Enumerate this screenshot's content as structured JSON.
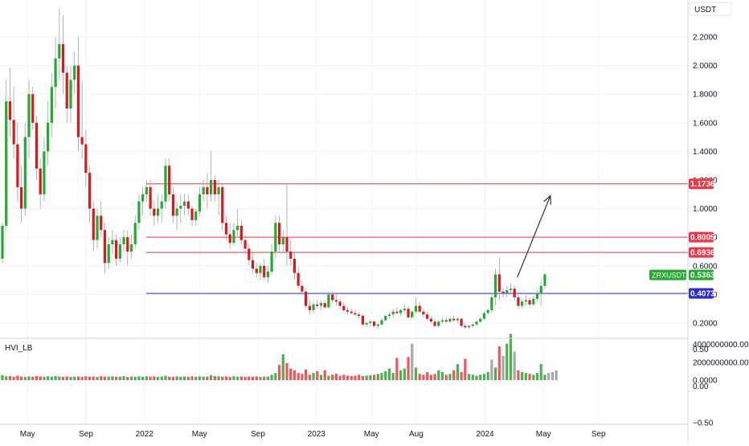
{
  "symbol": "ZRXUSDT.P",
  "quote_currency": "USDT",
  "indicator": {
    "name": "HVI_LB"
  },
  "chart_data": {
    "type": "candlestick",
    "price_axis": {
      "ticks": [
        {
          "value": 2.2,
          "label": "2.2000"
        },
        {
          "value": 2.0,
          "label": "2.0000"
        },
        {
          "value": 1.8,
          "label": "1.8000"
        },
        {
          "value": 1.6,
          "label": "1.6000"
        },
        {
          "value": 1.4,
          "label": "1.4000"
        },
        {
          "value": 1.2,
          "label": "1.2000"
        },
        {
          "value": 1.0,
          "label": "1.0000"
        },
        {
          "value": 0.8,
          "label": "0.8000"
        },
        {
          "value": 0.6,
          "label": "0.6000"
        },
        {
          "value": 0.4,
          "label": "0.4000"
        },
        {
          "value": 0.2,
          "label": "0.2000"
        }
      ],
      "ylim": [
        0.1,
        2.38
      ]
    },
    "time_axis": [
      {
        "label": "May",
        "t": 0.04
      },
      {
        "label": "Sep",
        "t": 0.125
      },
      {
        "label": "2022",
        "t": 0.21
      },
      {
        "label": "May",
        "t": 0.29
      },
      {
        "label": "Sep",
        "t": 0.375
      },
      {
        "label": "2023",
        "t": 0.46
      },
      {
        "label": "May",
        "t": 0.54
      },
      {
        "label": "Aug",
        "t": 0.605
      },
      {
        "label": "2024",
        "t": 0.705
      },
      {
        "label": "May",
        "t": 0.79
      },
      {
        "label": "Sep",
        "t": 0.87
      }
    ],
    "levels": [
      {
        "value": 1.1736,
        "label": "1.1736",
        "color": "#f23645"
      },
      {
        "value": 0.8005,
        "label": "0.8005",
        "color": "#f23645"
      },
      {
        "value": 0.6936,
        "label": "0.6936",
        "color": "#f23645"
      },
      {
        "value": 0.4073,
        "label": "0.4073",
        "color": "#2b2bd4"
      }
    ],
    "last_price": {
      "value": 0.5363,
      "label": "0.5363",
      "color": "#22ab2e"
    },
    "projection": {
      "from": {
        "t": 0.752,
        "p": 0.52
      },
      "to": {
        "t": 0.8,
        "p": 1.09
      }
    },
    "candles": [
      [
        0.65,
        0.9,
        0.62,
        0.88
      ],
      [
        0.88,
        1.9,
        0.85,
        1.75
      ],
      [
        1.75,
        1.98,
        1.5,
        1.62
      ],
      [
        1.62,
        1.85,
        1.35,
        1.45
      ],
      [
        1.45,
        1.6,
        1.05,
        1.15
      ],
      [
        1.15,
        1.3,
        0.9,
        1.0
      ],
      [
        1.0,
        1.6,
        0.95,
        1.5
      ],
      [
        1.5,
        1.9,
        1.35,
        1.8
      ],
      [
        1.8,
        1.85,
        1.55,
        1.6
      ],
      [
        1.6,
        1.65,
        1.2,
        1.28
      ],
      [
        1.28,
        1.35,
        1.0,
        1.1
      ],
      [
        1.1,
        1.5,
        1.05,
        1.4
      ],
      [
        1.4,
        1.75,
        1.3,
        1.6
      ],
      [
        1.6,
        1.95,
        1.5,
        1.85
      ],
      [
        1.85,
        2.2,
        1.7,
        2.05
      ],
      [
        2.05,
        2.4,
        1.9,
        2.15
      ],
      [
        2.15,
        2.35,
        1.8,
        1.95
      ],
      [
        1.95,
        2.0,
        1.6,
        1.7
      ],
      [
        1.7,
        2.0,
        1.6,
        1.9
      ],
      [
        1.9,
        2.1,
        1.8,
        2.0
      ],
      [
        2.0,
        2.2,
        1.4,
        1.5
      ],
      [
        1.5,
        1.9,
        1.35,
        1.45
      ],
      [
        1.45,
        1.55,
        1.15,
        1.25
      ],
      [
        1.25,
        1.3,
        0.9,
        1.0
      ],
      [
        1.0,
        1.05,
        0.7,
        0.78
      ],
      [
        0.78,
        1.0,
        0.72,
        0.95
      ],
      [
        0.95,
        1.05,
        0.8,
        0.85
      ],
      [
        0.85,
        0.9,
        0.55,
        0.62
      ],
      [
        0.62,
        0.8,
        0.58,
        0.75
      ],
      [
        0.75,
        0.85,
        0.68,
        0.78
      ],
      [
        0.78,
        0.82,
        0.6,
        0.65
      ],
      [
        0.65,
        0.8,
        0.62,
        0.75
      ],
      [
        0.75,
        0.85,
        0.7,
        0.8
      ],
      [
        0.8,
        0.85,
        0.6,
        0.7
      ],
      [
        0.7,
        0.82,
        0.65,
        0.75
      ],
      [
        0.75,
        0.95,
        0.72,
        0.9
      ],
      [
        0.9,
        1.1,
        0.85,
        1.05
      ],
      [
        1.05,
        1.15,
        0.95,
        1.1
      ],
      [
        1.1,
        1.2,
        1.05,
        1.15
      ],
      [
        1.15,
        1.2,
        0.95,
        1.0
      ],
      [
        1.0,
        1.05,
        0.88,
        0.95
      ],
      [
        0.95,
        1.1,
        0.9,
        1.0
      ],
      [
        1.0,
        1.1,
        0.9,
        1.05
      ],
      [
        1.05,
        1.35,
        1.0,
        1.3
      ],
      [
        1.3,
        1.35,
        1.05,
        1.1
      ],
      [
        1.1,
        1.15,
        0.9,
        0.95
      ],
      [
        0.95,
        1.05,
        0.85,
        1.0
      ],
      [
        1.0,
        1.1,
        0.9,
        1.02
      ],
      [
        1.02,
        1.1,
        0.95,
        1.05
      ],
      [
        1.05,
        1.1,
        0.95,
        1.0
      ],
      [
        1.0,
        1.02,
        0.88,
        0.92
      ],
      [
        0.92,
        1.0,
        0.88,
        0.98
      ],
      [
        0.98,
        1.15,
        0.95,
        1.1
      ],
      [
        1.1,
        1.2,
        1.05,
        1.15
      ],
      [
        1.15,
        1.25,
        1.0,
        1.1
      ],
      [
        1.1,
        1.4,
        1.05,
        1.2
      ],
      [
        1.2,
        1.23,
        1.05,
        1.1
      ],
      [
        1.1,
        1.2,
        0.95,
        1.15
      ],
      [
        1.15,
        1.18,
        0.85,
        0.9
      ],
      [
        0.9,
        0.95,
        0.78,
        0.82
      ],
      [
        0.82,
        0.9,
        0.72,
        0.76
      ],
      [
        0.76,
        0.9,
        0.74,
        0.85
      ],
      [
        0.85,
        1.0,
        0.8,
        0.88
      ],
      [
        0.88,
        0.92,
        0.75,
        0.78
      ],
      [
        0.78,
        0.82,
        0.68,
        0.72
      ],
      [
        0.72,
        0.75,
        0.6,
        0.64
      ],
      [
        0.64,
        0.7,
        0.55,
        0.58
      ],
      [
        0.58,
        0.62,
        0.52,
        0.55
      ],
      [
        0.55,
        0.62,
        0.5,
        0.6
      ],
      [
        0.6,
        0.65,
        0.5,
        0.52
      ],
      [
        0.52,
        0.6,
        0.48,
        0.56
      ],
      [
        0.56,
        0.75,
        0.54,
        0.7
      ],
      [
        0.7,
        0.95,
        0.65,
        0.9
      ],
      [
        0.9,
        0.95,
        0.7,
        0.75
      ],
      [
        0.75,
        0.85,
        0.7,
        0.8
      ],
      [
        0.8,
        1.18,
        0.6,
        0.7
      ],
      [
        0.7,
        0.78,
        0.6,
        0.65
      ],
      [
        0.65,
        0.7,
        0.5,
        0.55
      ],
      [
        0.55,
        0.6,
        0.44,
        0.46
      ],
      [
        0.46,
        0.5,
        0.4,
        0.42
      ],
      [
        0.42,
        0.44,
        0.3,
        0.32
      ],
      [
        0.32,
        0.36,
        0.26,
        0.29
      ],
      [
        0.29,
        0.35,
        0.27,
        0.33
      ],
      [
        0.33,
        0.36,
        0.3,
        0.32
      ],
      [
        0.32,
        0.36,
        0.29,
        0.34
      ],
      [
        0.34,
        0.36,
        0.3,
        0.31
      ],
      [
        0.31,
        0.42,
        0.3,
        0.4
      ],
      [
        0.4,
        0.42,
        0.34,
        0.36
      ],
      [
        0.36,
        0.4,
        0.32,
        0.35
      ],
      [
        0.35,
        0.37,
        0.3,
        0.32
      ],
      [
        0.32,
        0.34,
        0.28,
        0.29
      ],
      [
        0.29,
        0.31,
        0.26,
        0.28
      ],
      [
        0.28,
        0.3,
        0.26,
        0.27
      ],
      [
        0.27,
        0.29,
        0.25,
        0.26
      ],
      [
        0.26,
        0.28,
        0.23,
        0.25
      ],
      [
        0.25,
        0.26,
        0.18,
        0.19
      ],
      [
        0.19,
        0.21,
        0.17,
        0.2
      ],
      [
        0.2,
        0.22,
        0.18,
        0.21
      ],
      [
        0.21,
        0.22,
        0.17,
        0.18
      ],
      [
        0.18,
        0.2,
        0.16,
        0.19
      ],
      [
        0.19,
        0.23,
        0.18,
        0.22
      ],
      [
        0.22,
        0.26,
        0.21,
        0.25
      ],
      [
        0.25,
        0.28,
        0.23,
        0.26
      ],
      [
        0.26,
        0.3,
        0.24,
        0.28
      ],
      [
        0.28,
        0.31,
        0.26,
        0.27
      ],
      [
        0.27,
        0.3,
        0.25,
        0.29
      ],
      [
        0.29,
        0.33,
        0.27,
        0.3
      ],
      [
        0.3,
        0.32,
        0.23,
        0.24
      ],
      [
        0.24,
        0.29,
        0.23,
        0.28
      ],
      [
        0.28,
        0.38,
        0.27,
        0.32
      ],
      [
        0.32,
        0.35,
        0.27,
        0.28
      ],
      [
        0.28,
        0.3,
        0.24,
        0.26
      ],
      [
        0.26,
        0.28,
        0.22,
        0.23
      ],
      [
        0.23,
        0.25,
        0.2,
        0.21
      ],
      [
        0.21,
        0.23,
        0.17,
        0.18
      ],
      [
        0.18,
        0.22,
        0.17,
        0.21
      ],
      [
        0.21,
        0.24,
        0.2,
        0.22
      ],
      [
        0.22,
        0.24,
        0.2,
        0.21
      ],
      [
        0.21,
        0.24,
        0.2,
        0.23
      ],
      [
        0.23,
        0.25,
        0.21,
        0.22
      ],
      [
        0.22,
        0.24,
        0.2,
        0.23
      ],
      [
        0.23,
        0.24,
        0.17,
        0.18
      ],
      [
        0.18,
        0.2,
        0.16,
        0.17
      ],
      [
        0.17,
        0.19,
        0.16,
        0.18
      ],
      [
        0.18,
        0.2,
        0.17,
        0.19
      ],
      [
        0.19,
        0.22,
        0.18,
        0.21
      ],
      [
        0.21,
        0.24,
        0.2,
        0.23
      ],
      [
        0.23,
        0.28,
        0.22,
        0.27
      ],
      [
        0.27,
        0.3,
        0.26,
        0.29
      ],
      [
        0.29,
        0.4,
        0.27,
        0.38
      ],
      [
        0.38,
        0.58,
        0.32,
        0.54
      ],
      [
        0.54,
        0.66,
        0.36,
        0.42
      ],
      [
        0.42,
        0.45,
        0.38,
        0.41
      ],
      [
        0.41,
        0.46,
        0.38,
        0.43
      ],
      [
        0.43,
        0.48,
        0.4,
        0.44
      ],
      [
        0.44,
        0.46,
        0.36,
        0.38
      ],
      [
        0.38,
        0.42,
        0.3,
        0.32
      ],
      [
        0.32,
        0.37,
        0.3,
        0.35
      ],
      [
        0.35,
        0.4,
        0.32,
        0.36
      ],
      [
        0.36,
        0.38,
        0.31,
        0.33
      ],
      [
        0.33,
        0.39,
        0.32,
        0.37
      ],
      [
        0.37,
        0.43,
        0.35,
        0.41
      ],
      [
        0.41,
        0.5,
        0.32,
        0.46
      ],
      [
        0.46,
        0.55,
        0.44,
        0.54
      ]
    ],
    "volume_axis": {
      "ticks": [
        {
          "value": 4000000000,
          "label": "4000000000.0000"
        },
        {
          "value": 2000000000,
          "label": "2000000000.0000"
        },
        {
          "value": 0,
          "label": "0.0000"
        }
      ],
      "ylim": [
        0,
        4700000000
      ]
    },
    "volume": [
      550000000.0,
      420000000.0,
      450000000.0,
      380000000.0,
      500000000.0,
      400000000.0,
      350000000.0,
      420000000.0,
      380000000.0,
      460000000.0,
      410000000.0,
      360000000.0,
      430000000.0,
      390000000.0,
      440000000.0,
      400000000.0,
      370000000.0,
      420000000.0,
      350000000.0,
      390000000.0,
      410000000.0,
      360000000.0,
      440000000.0,
      380000000.0,
      400000000.0,
      360000000.0,
      430000000.0,
      380000000.0,
      390000000.0,
      410000000.0,
      370000000.0,
      390000000.0,
      450000000.0,
      360000000.0,
      400000000.0,
      380000000.0,
      420000000.0,
      370000000.0,
      440000000.0,
      390000000.0,
      410000000.0,
      360000000.0,
      400000000.0,
      480000000.0,
      390000000.0,
      370000000.0,
      420000000.0,
      380000000.0,
      400000000.0,
      360000000.0,
      430000000.0,
      390000000.0,
      410000000.0,
      380000000.0,
      400000000.0,
      550000000.0,
      450000000.0,
      420000000.0,
      380000000.0,
      400000000.0,
      360000000.0,
      440000000.0,
      390000000.0,
      410000000.0,
      370000000.0,
      400000000.0,
      380000000.0,
      420000000.0,
      360000000.0,
      390000000.0,
      400000000.0,
      600000000.0,
      800000000.0,
      1700000000.0,
      2900000000.0,
      1900000000.0,
      1300000000.0,
      1100000000.0,
      800000000.0,
      700000000.0,
      1200000000.0,
      600000000.0,
      800000000.0,
      1000000000.0,
      600000000.0,
      1100000000.0,
      500000000.0,
      600000000.0,
      700000000.0,
      500000000.0,
      600000000.0,
      500000000.0,
      450000000.0,
      500000000.0,
      600000000.0,
      450000000.0,
      500000000.0,
      550000000.0,
      600000000.0,
      700000000.0,
      800000000.0,
      1000000000.0,
      1300000000.0,
      800000000.0,
      2500000000.0,
      1100000000.0,
      1300000000.0,
      2600000000.0,
      4100000000.0,
      1400000000.0,
      700000000.0,
      600000000.0,
      900000000.0,
      600000000.0,
      700000000.0,
      1100000000.0,
      900000000.0,
      600000000.0,
      700000000.0,
      1100000000.0,
      1800000000.0,
      900000000.0,
      2400000000.0,
      700000000.0,
      600000000.0,
      500000000.0,
      600000000.0,
      700000000.0,
      900000000.0,
      2300000000.0,
      1400000000.0,
      3800000000.0,
      2700000000.0,
      4100000000.0,
      5200000000.0,
      3200000000.0,
      1100000000.0,
      900000000.0,
      800000000.0,
      700000000.0,
      600000000.0,
      800000000.0,
      1800000000.0,
      600000000.0,
      800000000.0,
      900000000.0,
      1100000000.0
    ],
    "oscillator_axis": {
      "ticks": [
        {
          "value": 0.5,
          "label": "0.50"
        },
        {
          "value": 0.0,
          "label": "0.00"
        },
        {
          "value": -0.5,
          "label": "−0.50"
        }
      ],
      "ylim": [
        -0.52,
        0.65
      ]
    }
  },
  "colors": {
    "up": "#22ab2e",
    "down": "#e0161b",
    "up_volume": "#4caf50",
    "down_volume": "#f0555a",
    "neutral_volume": "#a8a8a8",
    "grid": "#f0f3fa",
    "axis_border": "#d1d4dc"
  }
}
